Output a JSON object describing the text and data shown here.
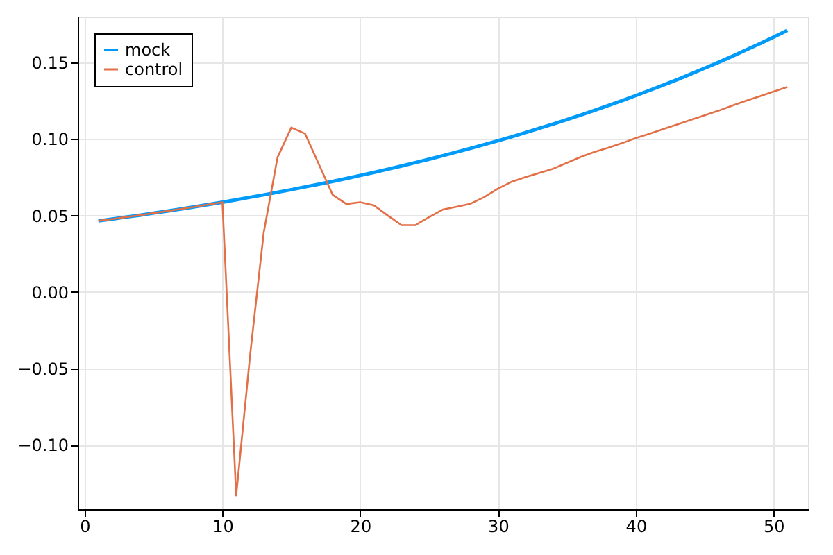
{
  "chart_data": {
    "type": "line",
    "x": [
      1,
      2,
      3,
      4,
      5,
      6,
      7,
      8,
      9,
      10,
      11,
      12,
      13,
      14,
      15,
      16,
      17,
      18,
      19,
      20,
      21,
      22,
      23,
      24,
      25,
      26,
      27,
      28,
      29,
      30,
      31,
      32,
      33,
      34,
      35,
      36,
      37,
      38,
      39,
      40,
      41,
      42,
      43,
      44,
      45,
      46,
      47,
      48,
      49,
      50,
      51
    ],
    "series": [
      {
        "name": "mock",
        "color": "#009af9",
        "values": [
          0.0465,
          0.0477,
          0.049,
          0.0502,
          0.0516,
          0.0529,
          0.0543,
          0.0557,
          0.0572,
          0.0587,
          0.0603,
          0.0619,
          0.0635,
          0.0652,
          0.0669,
          0.0687,
          0.0705,
          0.0723,
          0.0742,
          0.0762,
          0.0782,
          0.0803,
          0.0824,
          0.0846,
          0.0868,
          0.0891,
          0.0915,
          0.0939,
          0.0964,
          0.0989,
          0.1015,
          0.1042,
          0.107,
          0.1098,
          0.1127,
          0.1157,
          0.1187,
          0.1219,
          0.1251,
          0.1284,
          0.1318,
          0.1353,
          0.1388,
          0.1425,
          0.1463,
          0.1501,
          0.1541,
          0.1582,
          0.1623,
          0.1666,
          0.171
        ]
      },
      {
        "name": "control",
        "color": "#e26f46",
        "values": [
          0.0465,
          0.0477,
          0.049,
          0.0502,
          0.0516,
          0.0529,
          0.0543,
          0.0557,
          0.0572,
          0.0587,
          -0.133,
          -0.042,
          0.039,
          0.088,
          0.1075,
          0.1035,
          0.0835,
          0.0635,
          0.0575,
          0.0587,
          0.0566,
          0.05,
          0.0437,
          0.0437,
          0.049,
          0.0539,
          0.0557,
          0.0577,
          0.062,
          0.0676,
          0.0721,
          0.0751,
          0.0778,
          0.0806,
          0.0844,
          0.0883,
          0.0916,
          0.0943,
          0.0973,
          0.1006,
          0.1035,
          0.1065,
          0.1095,
          0.1125,
          0.1155,
          0.1185,
          0.1218,
          0.125,
          0.128,
          0.131,
          0.134
        ]
      }
    ],
    "xlim": [
      -0.5,
      52.5
    ],
    "xticks": [
      0,
      10,
      20,
      30,
      40,
      50
    ],
    "ylim": [
      -0.142,
      0.18
    ],
    "yticks": [
      {
        "value": -0.1,
        "label": "−0.10"
      },
      {
        "value": -0.05,
        "label": "−0.05"
      },
      {
        "value": 0,
        "label": "0.00"
      },
      0.05,
      {
        "value": 0.1,
        "label": "0.10"
      },
      0.15
    ],
    "grid": true,
    "legend": "top left",
    "line_style": "solid",
    "marker": "none"
  }
}
